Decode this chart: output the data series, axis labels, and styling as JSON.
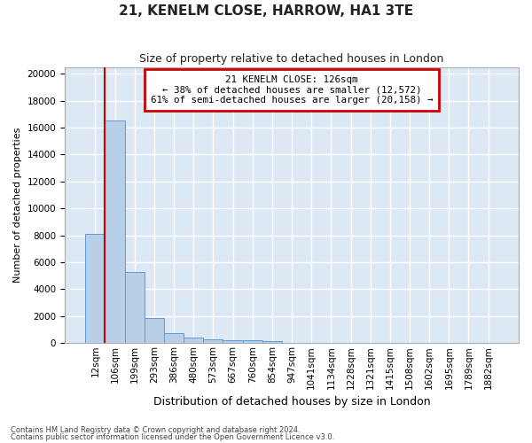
{
  "title1": "21, KENELM CLOSE, HARROW, HA1 3TE",
  "title2": "Size of property relative to detached houses in London",
  "xlabel": "Distribution of detached houses by size in London",
  "ylabel": "Number of detached properties",
  "footnote1": "Contains HM Land Registry data © Crown copyright and database right 2024.",
  "footnote2": "Contains public sector information licensed under the Open Government Licence v3.0.",
  "annotation_title": "21 KENELM CLOSE: 126sqm",
  "annotation_line1": "← 38% of detached houses are smaller (12,572)",
  "annotation_line2": "61% of semi-detached houses are larger (20,158) →",
  "bar_labels": [
    "12sqm",
    "106sqm",
    "199sqm",
    "293sqm",
    "386sqm",
    "480sqm",
    "573sqm",
    "667sqm",
    "760sqm",
    "854sqm",
    "947sqm",
    "1041sqm",
    "1134sqm",
    "1228sqm",
    "1321sqm",
    "1415sqm",
    "1508sqm",
    "1602sqm",
    "1695sqm",
    "1789sqm",
    "1882sqm"
  ],
  "bar_values": [
    8100,
    16500,
    5300,
    1850,
    700,
    380,
    300,
    230,
    200,
    130,
    0,
    0,
    0,
    0,
    0,
    0,
    0,
    0,
    0,
    0,
    0
  ],
  "bar_color": "#b8cfe8",
  "bar_edge_color": "#5b9bd5",
  "vline_color": "#cc0000",
  "annotation_box_edge_color": "#cc0000",
  "bg_color": "#dde8f5",
  "grid_color": "#ffffff",
  "ylim": [
    0,
    20500
  ],
  "yticks": [
    0,
    2000,
    4000,
    6000,
    8000,
    10000,
    12000,
    14000,
    16000,
    18000,
    20000
  ],
  "vline_position": 0.5,
  "title1_fontsize": 11,
  "title2_fontsize": 9,
  "ylabel_fontsize": 8,
  "xlabel_fontsize": 9,
  "tick_fontsize": 7.5
}
